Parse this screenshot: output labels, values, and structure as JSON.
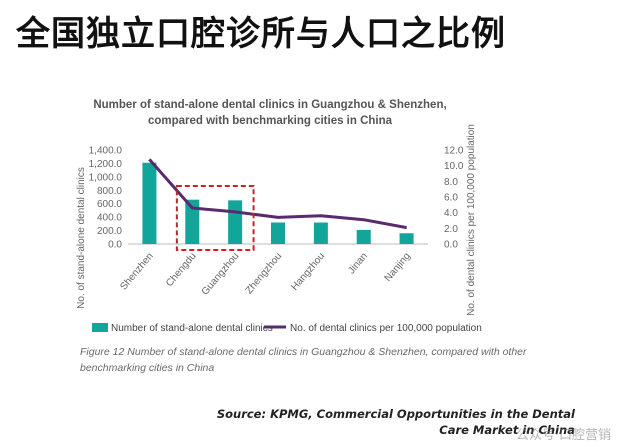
{
  "page": {
    "title": "全国独立口腔诊所与人口之比例",
    "caption": "Figure 12 Number of stand-alone dental clinics in Guangzhou & Shenzhen, compared with other benchmarking cities in China",
    "source": "Source: KPMG, Commercial Opportunities in the Dental Care Market in China",
    "watermark": "公众号·口腔营销"
  },
  "colors": {
    "bar": "#12a59a",
    "line": "#5a2a6e",
    "highlight": "#c0262c",
    "axis_text": "#666666",
    "title_text": "#555555"
  },
  "chart_data": {
    "type": "bar",
    "title": "Number of stand-alone dental clinics in Guangzhou & Shenzhen, compared with benchmarking cities in China",
    "title_lines": [
      "Number of stand-alone dental clinics in Guangzhou & Shenzhen,",
      "compared with benchmarking cities in China"
    ],
    "categories": [
      "Shenzhen",
      "Chengdu",
      "Guangzhou",
      "Zhengzhou",
      "Hangzhou",
      "Jinan",
      "Nanjing"
    ],
    "series": [
      {
        "name": "Number of stand-alone dental clinics",
        "type": "bar",
        "axis": "left",
        "values": [
          1210,
          660,
          650,
          320,
          320,
          210,
          160
        ]
      },
      {
        "name": "No. of dental clinics per 100,000 population",
        "type": "line",
        "axis": "right",
        "values": [
          10.8,
          4.6,
          4.1,
          3.4,
          3.6,
          3.1,
          2.1
        ]
      }
    ],
    "ylabel": "No. of stand-alone dental clinics",
    "ylabel2": "No. of dental clinics per 100,000 population",
    "ylim": [
      0,
      1400
    ],
    "y2lim": [
      0,
      12
    ],
    "yticks": [
      "0.0",
      "200.0",
      "400.0",
      "600.0",
      "800.0",
      "1,000.0",
      "1,200.0",
      "1,400.0"
    ],
    "y2ticks": [
      "0.0",
      "2.0",
      "4.0",
      "6.0",
      "8.0",
      "10.0",
      "12.0"
    ],
    "highlight_categories": [
      "Chengdu",
      "Guangzhou"
    ],
    "grid": false,
    "legend": "bottom"
  }
}
